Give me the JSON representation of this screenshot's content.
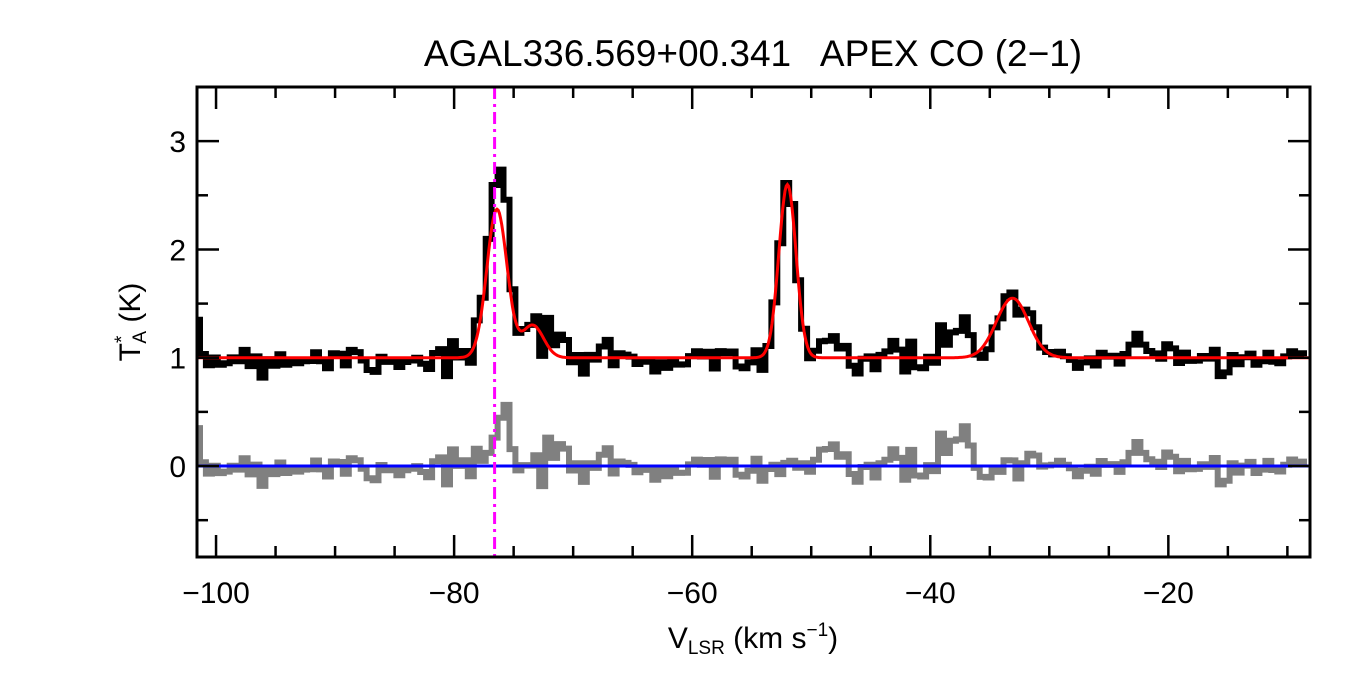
{
  "chart_data": {
    "type": "line",
    "title": "AGAL336.569+00.341   APEX CO (2−1)",
    "xlabel": {
      "main": "V",
      "sub": "LSR",
      "rest": " (km s",
      "sup": "−1",
      "end": ")"
    },
    "ylabel": {
      "main": "T",
      "sup": "*",
      "sub": "A",
      "rest": " (K)"
    },
    "xlim": [
      -101.6,
      -8.1
    ],
    "ylim": [
      -0.84,
      3.5
    ],
    "x_ticks": [
      -100,
      -80,
      -60,
      -40,
      -20
    ],
    "x_tick_labels": [
      "−100",
      "−80",
      "−60",
      "−40",
      "−20"
    ],
    "x_minor_step": 5,
    "y_ticks": [
      0,
      1,
      2,
      3
    ],
    "y_tick_labels": [
      "0",
      "1",
      "2",
      "3"
    ],
    "y_minor_step": 0.5,
    "reference_velocity": -76.6,
    "channel_width": 0.5,
    "spectrum_offset": 1.0,
    "fit_components": [
      {
        "center": -76.4,
        "amplitude": 1.37,
        "sigma": 0.85
      },
      {
        "center": -73.4,
        "amplitude": 0.3,
        "sigma": 0.9
      },
      {
        "center": -52.0,
        "amplitude": 1.6,
        "sigma": 0.72
      },
      {
        "center": -33.1,
        "amplitude": 0.55,
        "sigma": 1.35
      }
    ],
    "unfit_features": [
      {
        "center": -37.2,
        "amplitude": 0.3,
        "sigma": 0.6
      },
      {
        "center": -76.0,
        "amplitude": 0.45,
        "sigma": 0.6
      }
    ],
    "noise_rms": 0.09,
    "series": [
      {
        "name": "observed spectrum",
        "color": "#000000"
      },
      {
        "name": "gaussian fit",
        "color": "#ff0000"
      },
      {
        "name": "residual",
        "color": "#808080"
      },
      {
        "name": "zero level",
        "color": "#0000ff"
      },
      {
        "name": "source velocity",
        "color": "#ff00ff"
      }
    ]
  }
}
